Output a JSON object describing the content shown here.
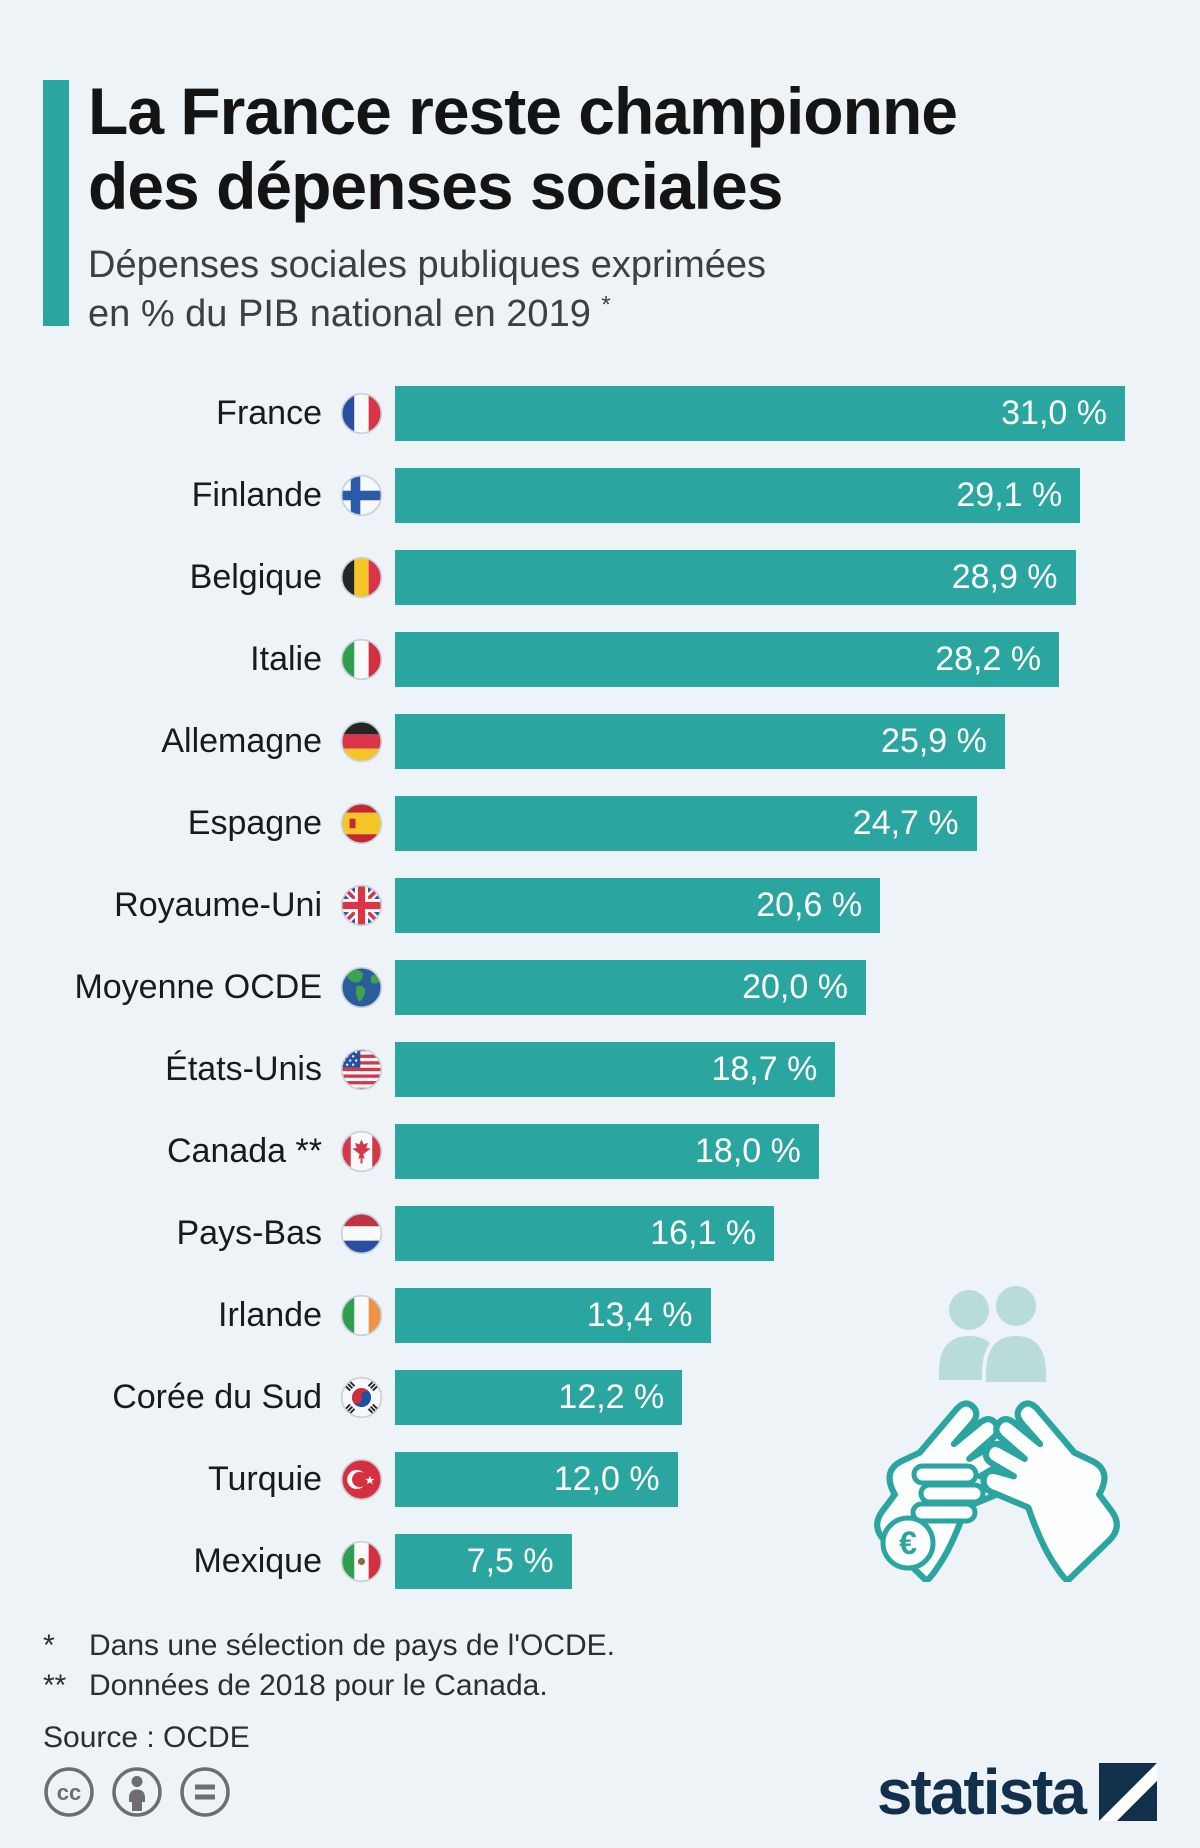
{
  "page": {
    "background": "#eef3f7",
    "accent_color": "#2aa5a0",
    "bar_color": "#2aa5a0",
    "logo_color": "#12304b"
  },
  "header": {
    "title_line1": "La France reste championne",
    "title_line2": "des dépenses sociales",
    "subtitle_line1": "Dépenses sociales publiques exprimées",
    "subtitle_line2": "en % du PIB national en 2019",
    "subtitle_footnote_marker": "*"
  },
  "chart_data": {
    "type": "bar",
    "orientation": "horizontal",
    "title": "La France reste championne des dépenses sociales",
    "subtitle": "Dépenses sociales publiques exprimées en % du PIB national en 2019 *",
    "value_unit": "% du PIB national",
    "xlim": [
      0,
      31
    ],
    "grid": false,
    "legend": false,
    "rows": [
      {
        "label": "France",
        "flag": "flag-france-icon",
        "value": 31.0,
        "value_label": "31,0 %"
      },
      {
        "label": "Finlande",
        "flag": "flag-finland-icon",
        "value": 29.1,
        "value_label": "29,1 %"
      },
      {
        "label": "Belgique",
        "flag": "flag-belgium-icon",
        "value": 28.9,
        "value_label": "28,9 %"
      },
      {
        "label": "Italie",
        "flag": "flag-italy-icon",
        "value": 28.2,
        "value_label": "28,2 %"
      },
      {
        "label": "Allemagne",
        "flag": "flag-germany-icon",
        "value": 25.9,
        "value_label": "25,9 %"
      },
      {
        "label": "Espagne",
        "flag": "flag-spain-icon",
        "value": 24.7,
        "value_label": "24,7 %"
      },
      {
        "label": "Royaume-Uni",
        "flag": "flag-uk-icon",
        "value": 20.6,
        "value_label": "20,6 %"
      },
      {
        "label": "Moyenne OCDE",
        "flag": "globe-icon",
        "value": 20.0,
        "value_label": "20,0 %"
      },
      {
        "label": "États-Unis",
        "flag": "flag-usa-icon",
        "value": 18.7,
        "value_label": "18,7 %"
      },
      {
        "label": "Canada **",
        "flag": "flag-canada-icon",
        "value": 18.0,
        "value_label": "18,0 %"
      },
      {
        "label": "Pays-Bas",
        "flag": "flag-netherlands-icon",
        "value": 16.1,
        "value_label": "16,1 %"
      },
      {
        "label": "Irlande",
        "flag": "flag-ireland-icon",
        "value": 13.4,
        "value_label": "13,4 %"
      },
      {
        "label": "Corée du Sud",
        "flag": "flag-south-korea-icon",
        "value": 12.2,
        "value_label": "12,2 %"
      },
      {
        "label": "Turquie",
        "flag": "flag-turkey-icon",
        "value": 12.0,
        "value_label": "12,0 %"
      },
      {
        "label": "Mexique",
        "flag": "flag-mexico-icon",
        "value": 7.5,
        "value_label": "7,5 %"
      }
    ]
  },
  "footnotes": {
    "note1_marker": "*",
    "note1_text": "Dans une sélection de pays de l'OCDE.",
    "note2_marker": "**",
    "note2_text": "Données de 2018 pour le Canada.",
    "source": "Source : OCDE"
  },
  "illustration": {
    "description": "hands-holding-people-and-coins",
    "euro_symbol": "€"
  },
  "footer": {
    "cc_label": "cc",
    "license_icons": [
      "cc-icon",
      "attribution-icon",
      "equal-icon"
    ],
    "logo_text": "statista"
  }
}
